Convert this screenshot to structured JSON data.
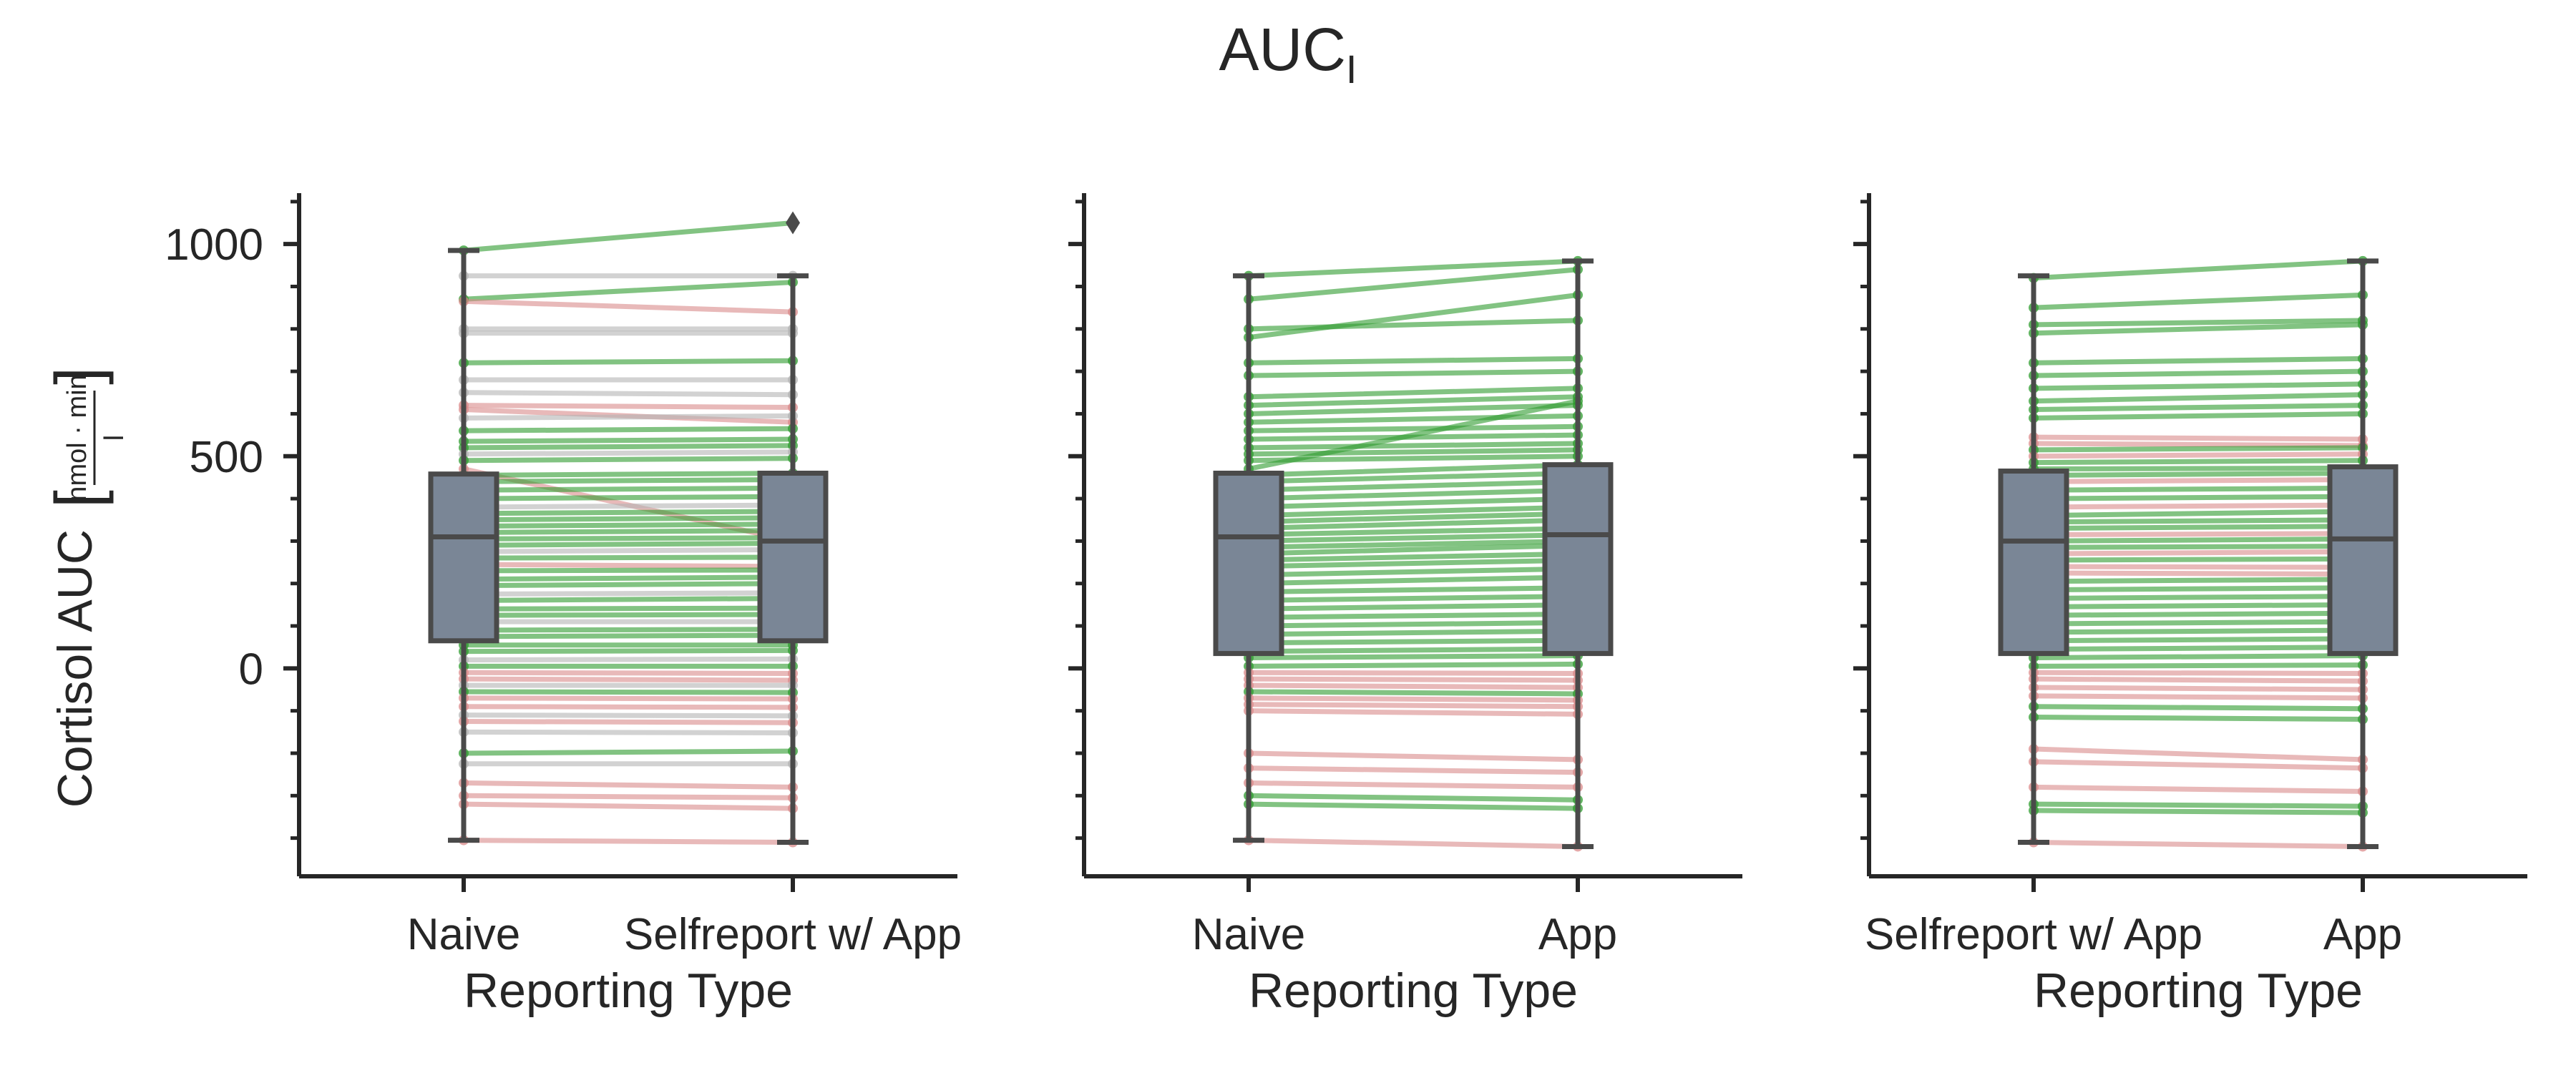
{
  "figure": {
    "title_main": "AUC",
    "title_sub": "I",
    "ylabel": "Cortisol AUC",
    "ylabel_unit_numerator": "nmol · min",
    "ylabel_unit_denominator": "l"
  },
  "colors": {
    "box_fill": "#7a8696",
    "box_edge": "#4a4a4a",
    "increase": "#2e9b2e",
    "decrease": "#d98a8a",
    "neutral": "#b4b4b4",
    "axis": "#262626"
  },
  "chart_data": [
    {
      "type": "box",
      "categories": [
        "Naive",
        "Selfreport w/ App"
      ],
      "xlabel": "Reporting Type",
      "ylabel": "Cortisol AUC",
      "ylim": [
        -490,
        1120
      ],
      "yticks": [
        0,
        500,
        1000
      ],
      "boxes": [
        {
          "category": "Naive",
          "whisker_low": -405,
          "q1": 65,
          "median": 310,
          "q3": 458,
          "whisker_high": 985,
          "outliers": []
        },
        {
          "category": "Selfreport w/ App",
          "whisker_low": -410,
          "q1": 65,
          "median": 300,
          "q3": 460,
          "whisker_high": 925,
          "outliers": [
            1050
          ]
        }
      ],
      "pairs": [
        [
          985,
          1050,
          "increase"
        ],
        [
          925,
          925,
          "neutral"
        ],
        [
          870,
          910,
          "increase"
        ],
        [
          865,
          840,
          "decrease"
        ],
        [
          800,
          800,
          "neutral"
        ],
        [
          790,
          790,
          "neutral"
        ],
        [
          720,
          725,
          "increase"
        ],
        [
          680,
          680,
          "neutral"
        ],
        [
          650,
          645,
          "neutral"
        ],
        [
          620,
          615,
          "decrease"
        ],
        [
          610,
          580,
          "decrease"
        ],
        [
          590,
          595,
          "neutral"
        ],
        [
          560,
          565,
          "increase"
        ],
        [
          535,
          540,
          "increase"
        ],
        [
          520,
          525,
          "increase"
        ],
        [
          505,
          510,
          "neutral"
        ],
        [
          490,
          495,
          "increase"
        ],
        [
          470,
          300,
          "decrease"
        ],
        [
          455,
          460,
          "increase"
        ],
        [
          440,
          445,
          "increase"
        ],
        [
          420,
          425,
          "increase"
        ],
        [
          400,
          405,
          "increase"
        ],
        [
          380,
          385,
          "neutral"
        ],
        [
          365,
          370,
          "increase"
        ],
        [
          350,
          355,
          "increase"
        ],
        [
          335,
          340,
          "increase"
        ],
        [
          320,
          325,
          "increase"
        ],
        [
          305,
          308,
          "increase"
        ],
        [
          290,
          295,
          "increase"
        ],
        [
          275,
          280,
          "neutral"
        ],
        [
          260,
          262,
          "increase"
        ],
        [
          245,
          240,
          "decrease"
        ],
        [
          230,
          232,
          "increase"
        ],
        [
          210,
          215,
          "increase"
        ],
        [
          195,
          200,
          "increase"
        ],
        [
          175,
          178,
          "neutral"
        ],
        [
          160,
          165,
          "increase"
        ],
        [
          140,
          142,
          "increase"
        ],
        [
          125,
          127,
          "increase"
        ],
        [
          110,
          110,
          "neutral"
        ],
        [
          90,
          92,
          "increase"
        ],
        [
          75,
          78,
          "increase"
        ],
        [
          55,
          55,
          "increase"
        ],
        [
          40,
          42,
          "increase"
        ],
        [
          20,
          22,
          "neutral"
        ],
        [
          5,
          5,
          "increase"
        ],
        [
          -10,
          -12,
          "decrease"
        ],
        [
          -25,
          -28,
          "decrease"
        ],
        [
          -40,
          -40,
          "neutral"
        ],
        [
          -55,
          -57,
          "increase"
        ],
        [
          -70,
          -72,
          "decrease"
        ],
        [
          -90,
          -92,
          "decrease"
        ],
        [
          -110,
          -112,
          "neutral"
        ],
        [
          -125,
          -128,
          "decrease"
        ],
        [
          -150,
          -152,
          "neutral"
        ],
        [
          -200,
          -195,
          "increase"
        ],
        [
          -225,
          -225,
          "neutral"
        ],
        [
          -270,
          -280,
          "decrease"
        ],
        [
          -300,
          -305,
          "decrease"
        ],
        [
          -320,
          -330,
          "decrease"
        ],
        [
          -405,
          -410,
          "decrease"
        ]
      ]
    },
    {
      "type": "box",
      "categories": [
        "Naive",
        "App"
      ],
      "xlabel": "Reporting Type",
      "ylabel": "Cortisol AUC",
      "ylim": [
        -490,
        1120
      ],
      "yticks": [
        0,
        500,
        1000
      ],
      "boxes": [
        {
          "category": "Naive",
          "whisker_low": -405,
          "q1": 35,
          "median": 310,
          "q3": 460,
          "whisker_high": 925,
          "outliers": []
        },
        {
          "category": "App",
          "whisker_low": -420,
          "q1": 35,
          "median": 315,
          "q3": 480,
          "whisker_high": 960,
          "outliers": []
        }
      ],
      "pairs": [
        [
          925,
          960,
          "increase"
        ],
        [
          870,
          940,
          "increase"
        ],
        [
          800,
          820,
          "increase"
        ],
        [
          780,
          880,
          "increase"
        ],
        [
          720,
          730,
          "increase"
        ],
        [
          690,
          700,
          "increase"
        ],
        [
          640,
          660,
          "increase"
        ],
        [
          620,
          640,
          "increase"
        ],
        [
          600,
          620,
          "increase"
        ],
        [
          580,
          595,
          "increase"
        ],
        [
          560,
          570,
          "increase"
        ],
        [
          540,
          550,
          "increase"
        ],
        [
          520,
          530,
          "increase"
        ],
        [
          505,
          515,
          "increase"
        ],
        [
          490,
          500,
          "increase"
        ],
        [
          470,
          630,
          "increase"
        ],
        [
          455,
          480,
          "increase"
        ],
        [
          440,
          460,
          "increase"
        ],
        [
          420,
          440,
          "increase"
        ],
        [
          400,
          420,
          "increase"
        ],
        [
          380,
          400,
          "increase"
        ],
        [
          360,
          380,
          "increase"
        ],
        [
          345,
          365,
          "increase"
        ],
        [
          330,
          350,
          "increase"
        ],
        [
          315,
          330,
          "increase"
        ],
        [
          300,
          315,
          "increase"
        ],
        [
          285,
          300,
          "increase"
        ],
        [
          270,
          290,
          "increase"
        ],
        [
          255,
          270,
          "increase"
        ],
        [
          240,
          255,
          "increase"
        ],
        [
          220,
          235,
          "increase"
        ],
        [
          200,
          215,
          "increase"
        ],
        [
          180,
          190,
          "increase"
        ],
        [
          160,
          170,
          "increase"
        ],
        [
          140,
          150,
          "increase"
        ],
        [
          120,
          128,
          "increase"
        ],
        [
          100,
          108,
          "increase"
        ],
        [
          80,
          88,
          "increase"
        ],
        [
          60,
          66,
          "increase"
        ],
        [
          40,
          46,
          "increase"
        ],
        [
          25,
          30,
          "increase"
        ],
        [
          5,
          10,
          "increase"
        ],
        [
          -10,
          -12,
          "decrease"
        ],
        [
          -25,
          -28,
          "decrease"
        ],
        [
          -40,
          -45,
          "decrease"
        ],
        [
          -55,
          -60,
          "increase"
        ],
        [
          -70,
          -75,
          "decrease"
        ],
        [
          -85,
          -90,
          "decrease"
        ],
        [
          -100,
          -108,
          "decrease"
        ],
        [
          -200,
          -215,
          "decrease"
        ],
        [
          -235,
          -245,
          "decrease"
        ],
        [
          -270,
          -280,
          "decrease"
        ],
        [
          -300,
          -310,
          "increase"
        ],
        [
          -320,
          -330,
          "increase"
        ],
        [
          -405,
          -420,
          "decrease"
        ]
      ]
    },
    {
      "type": "box",
      "categories": [
        "Selfreport w/ App",
        "App"
      ],
      "xlabel": "Reporting Type",
      "ylabel": "Cortisol AUC",
      "ylim": [
        -490,
        1120
      ],
      "yticks": [
        0,
        500,
        1000
      ],
      "boxes": [
        {
          "category": "Selfreport w/ App",
          "whisker_low": -410,
          "q1": 35,
          "median": 300,
          "q3": 465,
          "whisker_high": 925,
          "outliers": []
        },
        {
          "category": "App",
          "whisker_low": -420,
          "q1": 35,
          "median": 305,
          "q3": 475,
          "whisker_high": 960,
          "outliers": []
        }
      ],
      "pairs": [
        [
          920,
          960,
          "increase"
        ],
        [
          850,
          880,
          "increase"
        ],
        [
          810,
          820,
          "increase"
        ],
        [
          790,
          810,
          "increase"
        ],
        [
          720,
          730,
          "increase"
        ],
        [
          690,
          700,
          "increase"
        ],
        [
          660,
          670,
          "increase"
        ],
        [
          630,
          645,
          "increase"
        ],
        [
          610,
          620,
          "increase"
        ],
        [
          590,
          600,
          "increase"
        ],
        [
          545,
          540,
          "decrease"
        ],
        [
          530,
          525,
          "decrease"
        ],
        [
          515,
          520,
          "increase"
        ],
        [
          500,
          505,
          "decrease"
        ],
        [
          485,
          490,
          "increase"
        ],
        [
          470,
          472,
          "increase"
        ],
        [
          455,
          460,
          "increase"
        ],
        [
          440,
          445,
          "decrease"
        ],
        [
          420,
          425,
          "increase"
        ],
        [
          400,
          405,
          "increase"
        ],
        [
          380,
          385,
          "decrease"
        ],
        [
          360,
          370,
          "increase"
        ],
        [
          345,
          350,
          "increase"
        ],
        [
          330,
          335,
          "increase"
        ],
        [
          315,
          318,
          "decrease"
        ],
        [
          300,
          305,
          "increase"
        ],
        [
          285,
          288,
          "increase"
        ],
        [
          270,
          275,
          "decrease"
        ],
        [
          255,
          258,
          "increase"
        ],
        [
          240,
          238,
          "decrease"
        ],
        [
          225,
          222,
          "decrease"
        ],
        [
          205,
          210,
          "increase"
        ],
        [
          185,
          190,
          "increase"
        ],
        [
          165,
          170,
          "increase"
        ],
        [
          145,
          150,
          "increase"
        ],
        [
          125,
          130,
          "increase"
        ],
        [
          105,
          110,
          "increase"
        ],
        [
          85,
          90,
          "increase"
        ],
        [
          65,
          70,
          "increase"
        ],
        [
          45,
          50,
          "increase"
        ],
        [
          25,
          30,
          "increase"
        ],
        [
          5,
          8,
          "increase"
        ],
        [
          -10,
          -12,
          "decrease"
        ],
        [
          -25,
          -30,
          "decrease"
        ],
        [
          -45,
          -50,
          "decrease"
        ],
        [
          -65,
          -70,
          "decrease"
        ],
        [
          -90,
          -95,
          "increase"
        ],
        [
          -115,
          -120,
          "increase"
        ],
        [
          -190,
          -215,
          "decrease"
        ],
        [
          -220,
          -235,
          "decrease"
        ],
        [
          -280,
          -290,
          "decrease"
        ],
        [
          -320,
          -325,
          "increase"
        ],
        [
          -335,
          -340,
          "increase"
        ],
        [
          -410,
          -420,
          "decrease"
        ]
      ]
    }
  ]
}
